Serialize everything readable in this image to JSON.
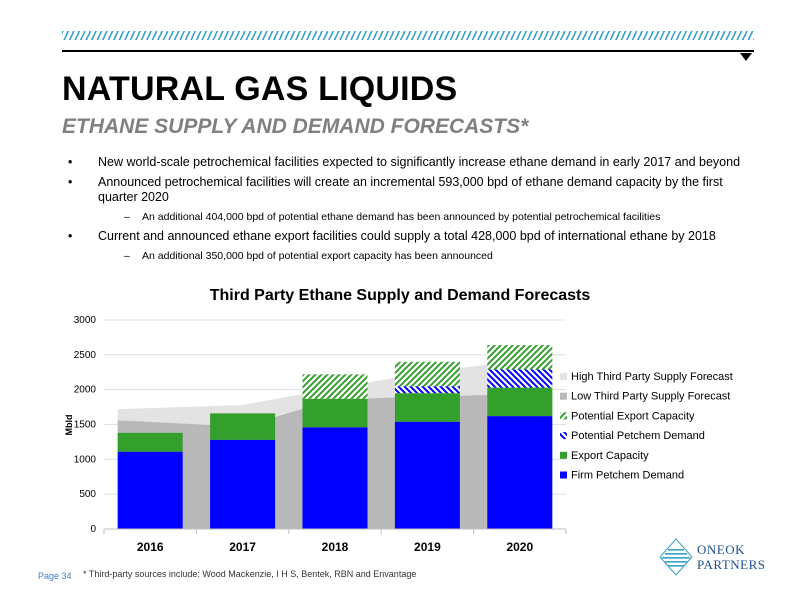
{
  "header": {
    "title": "NATURAL GAS LIQUIDS",
    "subtitle": "ETHANE SUPPLY AND DEMAND FORECASTS*"
  },
  "bullets": [
    {
      "text": "New world-scale petrochemical facilities expected to significantly increase ethane demand in early 2017 and beyond"
    },
    {
      "text": "Announced petrochemical facilities will create an incremental 593,000 bpd of ethane demand capacity by the first quarter 2020",
      "sub": "An additional 404,000 bpd of potential ethane demand has been announced by potential petrochemical facilities"
    },
    {
      "text": "Current and announced ethane export facilities could supply a total 428,000 bpd of international ethane by 2018",
      "sub": "An additional 350,000 bpd of potential export capacity has been announced"
    }
  ],
  "bullet_marker": "•",
  "sub_marker": "–",
  "chart_data": {
    "type": "bar",
    "title": "Third Party Ethane Supply and Demand Forecasts",
    "ylabel": "Mbld",
    "xlabel": "",
    "ylim": [
      0,
      3000
    ],
    "yticks": [
      0,
      500,
      1000,
      1500,
      2000,
      2500,
      3000
    ],
    "categories": [
      "2016",
      "2017",
      "2018",
      "2019",
      "2020"
    ],
    "stacked": true,
    "series": [
      {
        "name": "Firm Petchem Demand",
        "color": "#0000ff",
        "pattern": "solid",
        "values": [
          1110,
          1280,
          1460,
          1540,
          1620
        ]
      },
      {
        "name": "Export Capacity",
        "color": "#33a02c",
        "pattern": "solid",
        "values": [
          270,
          380,
          410,
          410,
          410
        ]
      },
      {
        "name": "Potential Petchem Demand",
        "color": "#0000ff",
        "pattern": "dots",
        "values": [
          0,
          0,
          0,
          100,
          260
        ]
      },
      {
        "name": "Potential Export Capacity",
        "color": "#33a02c",
        "pattern": "hatch",
        "values": [
          0,
          0,
          350,
          350,
          350
        ]
      }
    ],
    "area_series": [
      {
        "name": "High Third Party Supply Forecast",
        "color": "#e3e3e3",
        "x_points": [
          0,
          1,
          2,
          3,
          4
        ],
        "values": [
          1720,
          1780,
          2020,
          2250,
          2480
        ]
      },
      {
        "name": "Low Third Party Supply Forecast",
        "color": "#b8b8b8",
        "x_points": [
          0,
          1,
          2,
          3,
          4
        ],
        "values": [
          1560,
          1470,
          1860,
          1900,
          1950
        ]
      }
    ],
    "legend": {
      "placement": "right",
      "entries": [
        {
          "name": "High Third Party Supply Forecast",
          "color": "#e3e3e3",
          "pattern": "solid"
        },
        {
          "name": "Low Third Party Supply Forecast",
          "color": "#b8b8b8",
          "pattern": "solid"
        },
        {
          "name": "Potential Export Capacity",
          "color": "#33a02c",
          "pattern": "hatch"
        },
        {
          "name": "Potential Petchem Demand",
          "color": "#0000ff",
          "pattern": "dots"
        },
        {
          "name": "Export Capacity",
          "color": "#33a02c",
          "pattern": "solid"
        },
        {
          "name": "Firm Petchem Demand",
          "color": "#0000ff",
          "pattern": "solid"
        }
      ]
    },
    "grid": true
  },
  "footer": {
    "page": "Page 34",
    "note": "* Third-party sources include: Wood Mackenzie, I H S, Bentek, RBN and Envantage",
    "logo_line1": "ONEOK",
    "logo_line2": "PARTNERS"
  },
  "colors": {
    "accent": "#3aa1c8",
    "brand": "#1e4e8c",
    "page_number": "#3a7fc1"
  }
}
